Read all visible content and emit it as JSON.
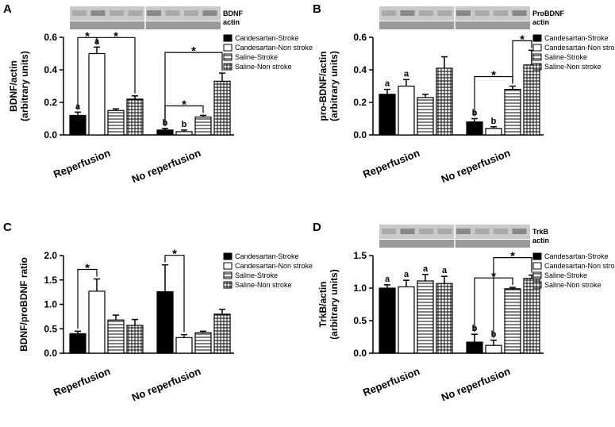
{
  "chart_data": [
    {
      "type": "bar",
      "panel": "A",
      "blot_labels": [
        "BDNF",
        "actin"
      ],
      "ylabel": [
        "BDNF/actin",
        "(arbitrary units)"
      ],
      "categories": [
        "Reperfusion",
        "No reperfusion"
      ],
      "series": [
        {
          "name": "Candesartan-Stroke",
          "color": "#000000",
          "values": [
            0.12,
            0.03
          ],
          "errors": [
            0.02,
            0.01
          ],
          "labels": [
            "a",
            "b"
          ]
        },
        {
          "name": "Candesartan-Non stroke",
          "color": "#ffffff",
          "values": [
            0.5,
            0.02
          ],
          "errors": [
            0.04,
            0.01
          ],
          "labels": [
            "a",
            "b"
          ]
        },
        {
          "name": "Saline-Stroke",
          "color": "#ffffff",
          "pattern": "horizontal",
          "values": [
            0.15,
            0.11
          ],
          "errors": [
            0.01,
            0.01
          ]
        },
        {
          "name": "Saline-Non stroke",
          "color": "#ffffff",
          "pattern": "grid",
          "values": [
            0.22,
            0.33
          ],
          "errors": [
            0.02,
            0.05
          ]
        }
      ],
      "ylim": [
        0,
        0.6
      ],
      "yticks": [
        {
          "value": 0,
          "label": "0.0"
        },
        0.2,
        0.4,
        0.6
      ],
      "annotations": [
        "*",
        "*",
        "*",
        "*"
      ]
    },
    {
      "type": "bar",
      "panel": "B",
      "blot_labels": [
        "ProBDNF",
        "actin"
      ],
      "ylabel": [
        "pro-BDNF/actin",
        "(arbitrary units)"
      ],
      "categories": [
        "Reperfusion",
        "No reperfusion"
      ],
      "series": [
        {
          "name": "Candesartan-Stroke",
          "color": "#000000",
          "values": [
            0.25,
            0.08
          ],
          "errors": [
            0.03,
            0.02
          ],
          "labels": [
            "a",
            "b"
          ]
        },
        {
          "name": "Candesartan-Non stroke",
          "color": "#ffffff",
          "values": [
            0.3,
            0.04
          ],
          "errors": [
            0.04,
            0.01
          ],
          "labels": [
            "a",
            "b"
          ]
        },
        {
          "name": "Saline-Stroke",
          "color": "#ffffff",
          "pattern": "horizontal",
          "values": [
            0.23,
            0.28
          ],
          "errors": [
            0.02,
            0.02
          ]
        },
        {
          "name": "Saline-Non stroke",
          "color": "#ffffff",
          "pattern": "grid",
          "values": [
            0.41,
            0.43
          ],
          "errors": [
            0.07,
            0.09
          ]
        }
      ],
      "ylim": [
        0,
        0.6
      ],
      "yticks": [
        {
          "value": 0,
          "label": "0.0"
        },
        0.2,
        0.4,
        0.6
      ],
      "annotations": [
        "*",
        "*"
      ]
    },
    {
      "type": "bar",
      "panel": "C",
      "ylabel": [
        "BDNF/proBDNF ratio"
      ],
      "categories": [
        "Reperfusion",
        "No reperfusion"
      ],
      "series": [
        {
          "name": "Candesartan-Stroke",
          "color": "#000000",
          "values": [
            0.4,
            1.26
          ],
          "errors": [
            0.05,
            0.55
          ]
        },
        {
          "name": "Candesartan-Non stroke",
          "color": "#ffffff",
          "values": [
            1.27,
            0.32
          ],
          "errors": [
            0.25,
            0.06
          ]
        },
        {
          "name": "Saline-Stroke",
          "color": "#ffffff",
          "pattern": "horizontal",
          "values": [
            0.68,
            0.42
          ],
          "errors": [
            0.1,
            0.03
          ]
        },
        {
          "name": "Saline-Non stroke",
          "color": "#ffffff",
          "pattern": "grid",
          "values": [
            0.57,
            0.8
          ],
          "errors": [
            0.12,
            0.1
          ]
        }
      ],
      "ylim": [
        0,
        2
      ],
      "yticks": [
        {
          "value": 0,
          "label": "0.0"
        },
        0.5,
        {
          "value": 1,
          "label": "1.0"
        },
        1.5,
        {
          "value": 2,
          "label": "2.0"
        }
      ],
      "annotations": [
        "*",
        "*"
      ]
    },
    {
      "type": "bar",
      "panel": "D",
      "blot_labels": [
        "TrkB",
        "actin"
      ],
      "ylabel": [
        "TrkB/actin",
        "(arbitrary units)"
      ],
      "categories": [
        "Reperfusion",
        "No reperfusion"
      ],
      "series": [
        {
          "name": "Candesartan-Stroke",
          "color": "#000000",
          "values": [
            1.0,
            0.17
          ],
          "errors": [
            0.05,
            0.12
          ],
          "labels": [
            "a",
            "b"
          ]
        },
        {
          "name": "Candesartan-Non stroke",
          "color": "#ffffff",
          "values": [
            1.02,
            0.12
          ],
          "errors": [
            0.1,
            0.08
          ],
          "labels": [
            "a",
            "b"
          ]
        },
        {
          "name": "Saline-Stroke",
          "color": "#ffffff",
          "pattern": "horizontal",
          "values": [
            1.11,
            0.99
          ],
          "errors": [
            0.1,
            0.02
          ],
          "labels": [
            "a",
            null
          ]
        },
        {
          "name": "Saline-Non stroke",
          "color": "#ffffff",
          "pattern": "grid",
          "values": [
            1.07,
            1.15
          ],
          "errors": [
            0.11,
            0.05
          ],
          "labels": [
            "a",
            null
          ]
        }
      ],
      "ylim": [
        0,
        1.5
      ],
      "yticks": [
        {
          "value": 0,
          "label": "0.0"
        },
        0.5,
        {
          "value": 1,
          "label": "1.0"
        },
        1.5
      ],
      "annotations": [
        "*",
        "*"
      ]
    }
  ]
}
